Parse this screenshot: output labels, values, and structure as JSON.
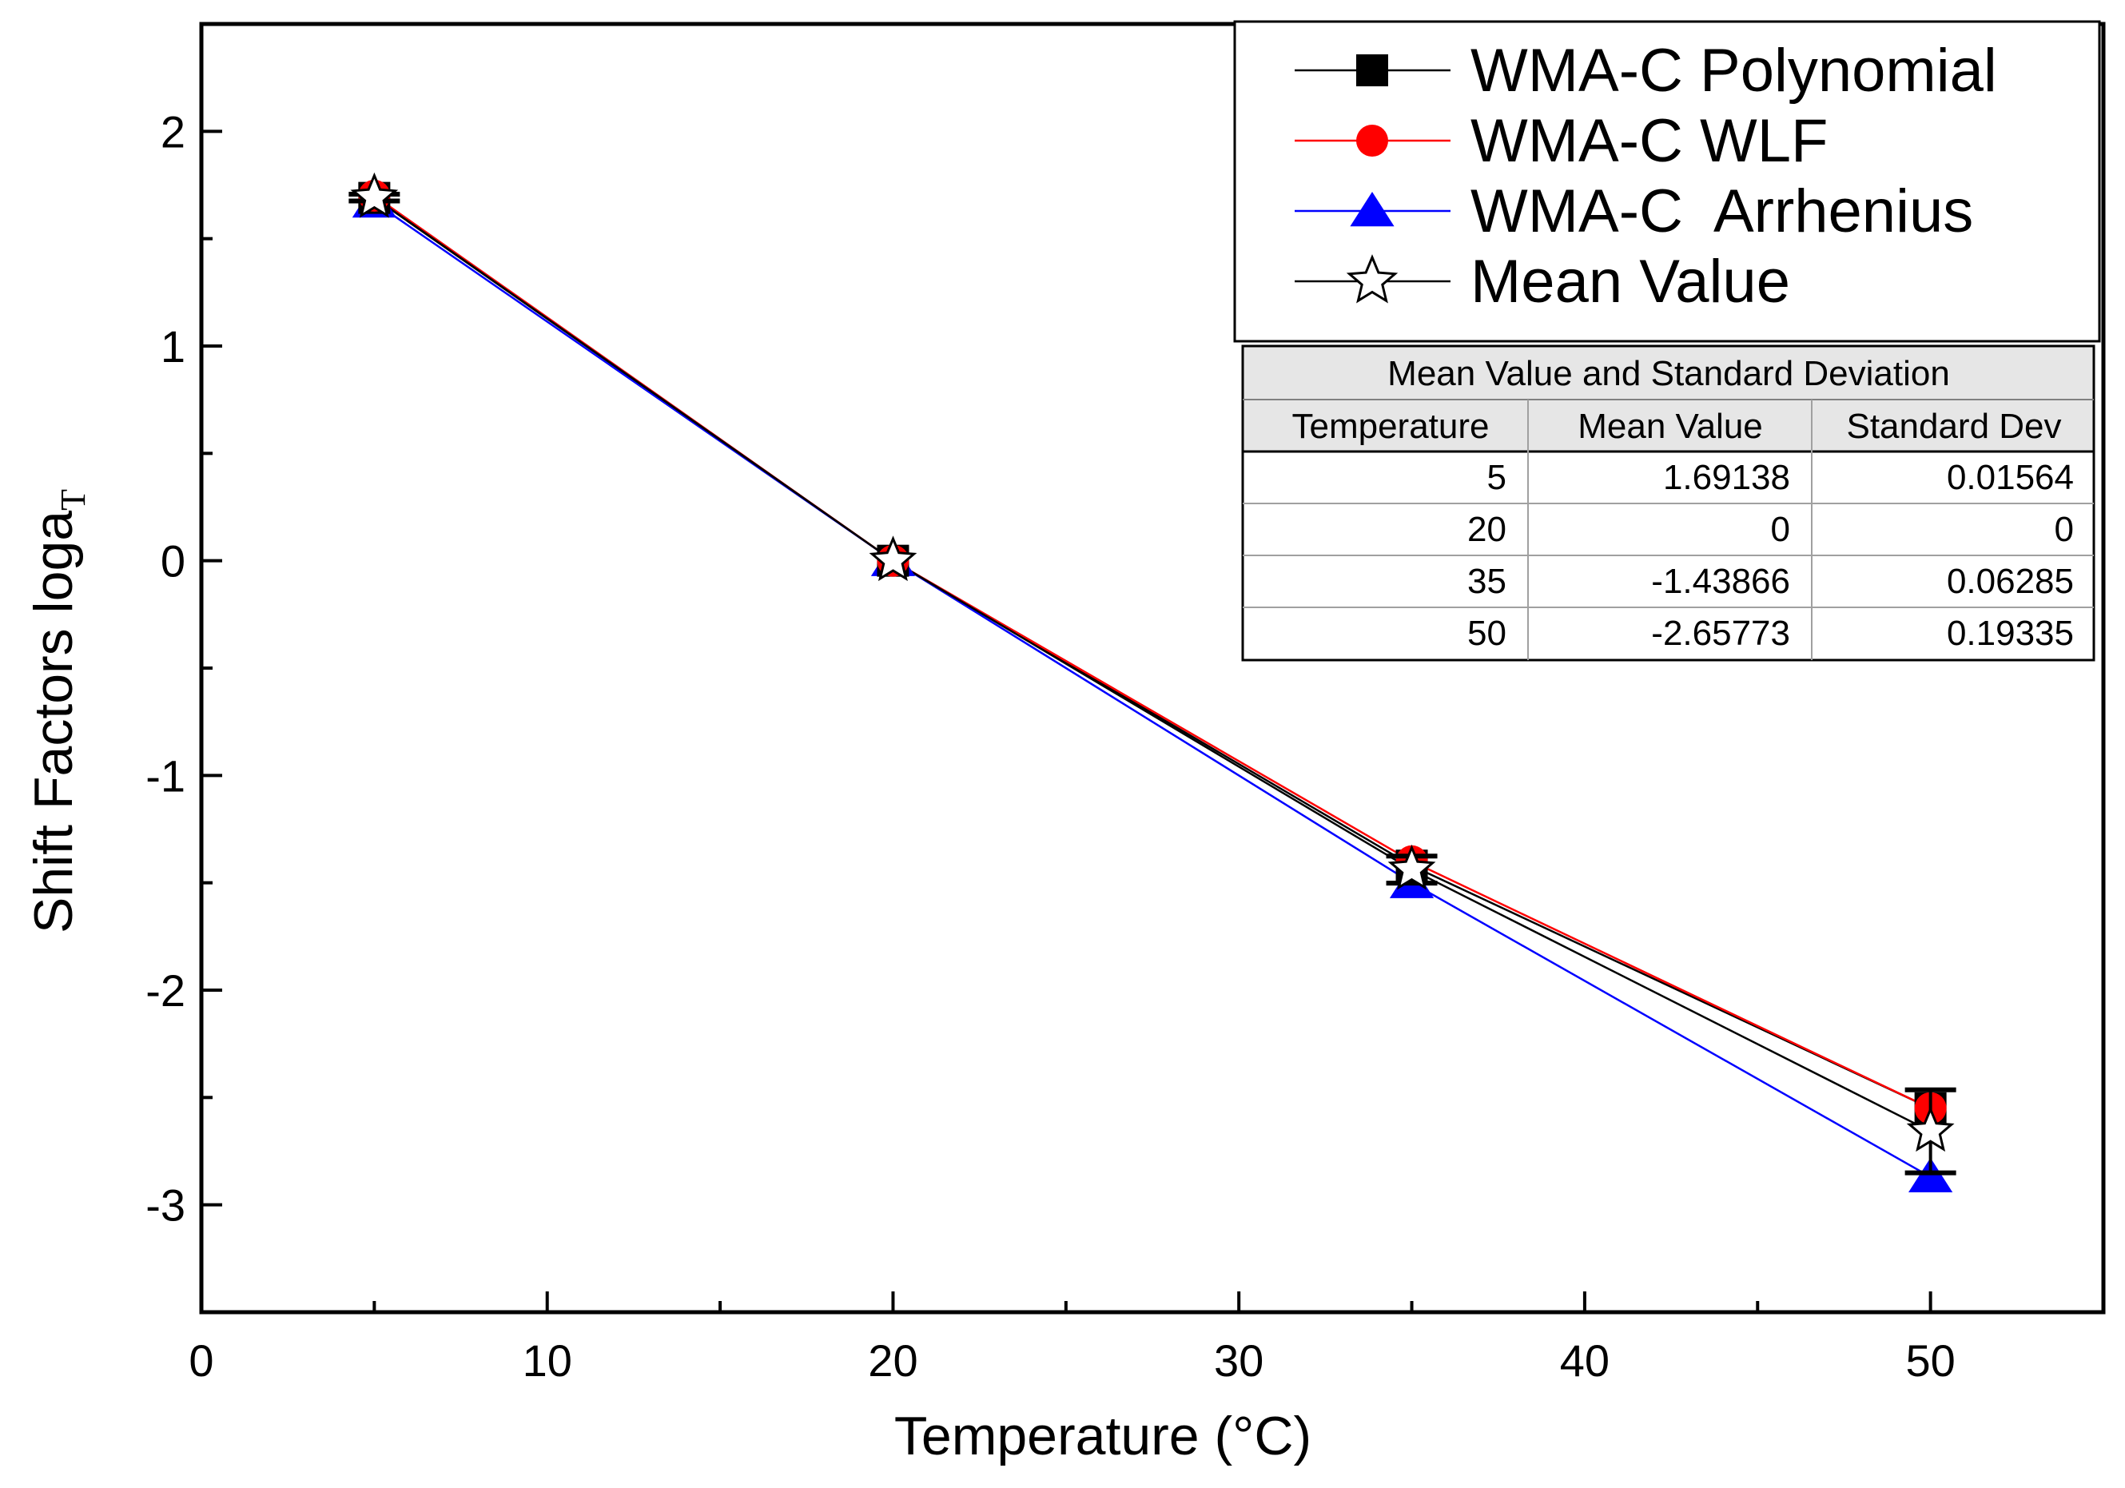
{
  "chart_data": {
    "type": "line",
    "xlabel": "Temperature (°C)",
    "ylabel": "Shift Factors loga",
    "ylabel_subscript": "T",
    "xlim": [
      0,
      55
    ],
    "ylim": [
      -3.5,
      2.5
    ],
    "x_ticks": [
      0,
      10,
      20,
      30,
      40,
      50
    ],
    "y_ticks": [
      -3,
      -2,
      -1,
      0,
      1,
      2
    ],
    "grid": false,
    "legend_position": "top-right",
    "series": [
      {
        "name": "WMA-C Polynomial",
        "color": "#000000",
        "marker": "square",
        "x": [
          5,
          20,
          35,
          50
        ],
        "y": [
          1.69,
          0.0,
          -1.42,
          -2.55
        ]
      },
      {
        "name": "WMA-C WLF",
        "color": "#ff0000",
        "marker": "circle",
        "x": [
          5,
          20,
          35,
          50
        ],
        "y": [
          1.7,
          0.0,
          -1.4,
          -2.55
        ]
      },
      {
        "name": "WMA-C  Arrhenius",
        "color": "#0000ff",
        "marker": "triangle",
        "x": [
          5,
          20,
          35,
          50
        ],
        "y": [
          1.67,
          0.0,
          -1.5,
          -2.87
        ]
      },
      {
        "name": "Mean Value",
        "color": "#000000",
        "marker": "star",
        "x": [
          5,
          20,
          35,
          50
        ],
        "y": [
          1.69138,
          0.0,
          -1.43866,
          -2.65773
        ],
        "error": [
          0.01564,
          0.0,
          0.06285,
          0.19335
        ]
      }
    ]
  },
  "table": {
    "title": "Mean Value and Standard Deviation",
    "headers": [
      "Temperature",
      "Mean Value",
      "Standard Dev"
    ],
    "rows": [
      [
        "5",
        "1.69138",
        "0.01564"
      ],
      [
        "20",
        "0",
        "0"
      ],
      [
        "35",
        "-1.43866",
        "0.06285"
      ],
      [
        "50",
        "-2.65773",
        "0.19335"
      ]
    ]
  }
}
